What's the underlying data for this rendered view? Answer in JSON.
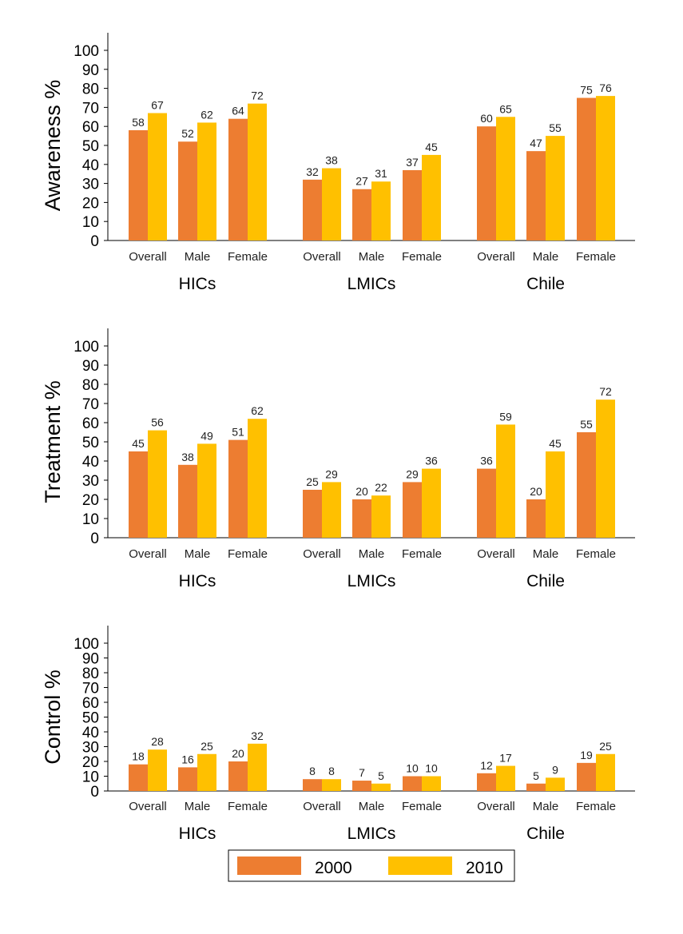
{
  "colors": {
    "2000": "#ED7D31",
    "2010": "#FFC000"
  },
  "legend": [
    {
      "name": "2000",
      "color": "#ED7D31"
    },
    {
      "name": "2010",
      "color": "#FFC000"
    }
  ],
  "chart_data": [
    {
      "type": "bar",
      "title": "",
      "ylabel": "Awareness %",
      "ylim": [
        0,
        100
      ],
      "yticks": [
        0,
        10,
        20,
        30,
        40,
        50,
        60,
        70,
        80,
        90,
        100
      ],
      "groups": [
        "HICs",
        "LMICs",
        "Chile"
      ],
      "categories": [
        "Overall",
        "Male",
        "Female"
      ],
      "series": [
        {
          "name": "2000",
          "values": [
            [
              58,
              52,
              64
            ],
            [
              32,
              27,
              37
            ],
            [
              60,
              47,
              75
            ]
          ]
        },
        {
          "name": "2010",
          "values": [
            [
              67,
              62,
              72
            ],
            [
              38,
              31,
              45
            ],
            [
              65,
              55,
              76
            ]
          ]
        }
      ]
    },
    {
      "type": "bar",
      "title": "",
      "ylabel": "Treatment %",
      "ylim": [
        0,
        100
      ],
      "yticks": [
        0,
        10,
        20,
        30,
        40,
        50,
        60,
        70,
        80,
        90,
        100
      ],
      "groups": [
        "HICs",
        "LMICs",
        "Chile"
      ],
      "categories": [
        "Overall",
        "Male",
        "Female"
      ],
      "series": [
        {
          "name": "2000",
          "values": [
            [
              45,
              38,
              51
            ],
            [
              25,
              20,
              29
            ],
            [
              36,
              20,
              55
            ]
          ]
        },
        {
          "name": "2010",
          "values": [
            [
              56,
              49,
              62
            ],
            [
              29,
              22,
              36
            ],
            [
              59,
              45,
              72
            ]
          ]
        }
      ]
    },
    {
      "type": "bar",
      "title": "",
      "ylabel": "Control %",
      "ylim": [
        0,
        100
      ],
      "yticks": [
        0,
        10,
        20,
        30,
        40,
        50,
        60,
        70,
        80,
        90,
        100
      ],
      "groups": [
        "HICs",
        "LMICs",
        "Chile"
      ],
      "categories": [
        "Overall",
        "Male",
        "Female"
      ],
      "series": [
        {
          "name": "2000",
          "values": [
            [
              18,
              16,
              20
            ],
            [
              8,
              7,
              10
            ],
            [
              12,
              5,
              19
            ]
          ]
        },
        {
          "name": "2010",
          "values": [
            [
              28,
              25,
              32
            ],
            [
              8,
              5,
              10
            ],
            [
              17,
              9,
              25
            ]
          ]
        }
      ]
    }
  ]
}
